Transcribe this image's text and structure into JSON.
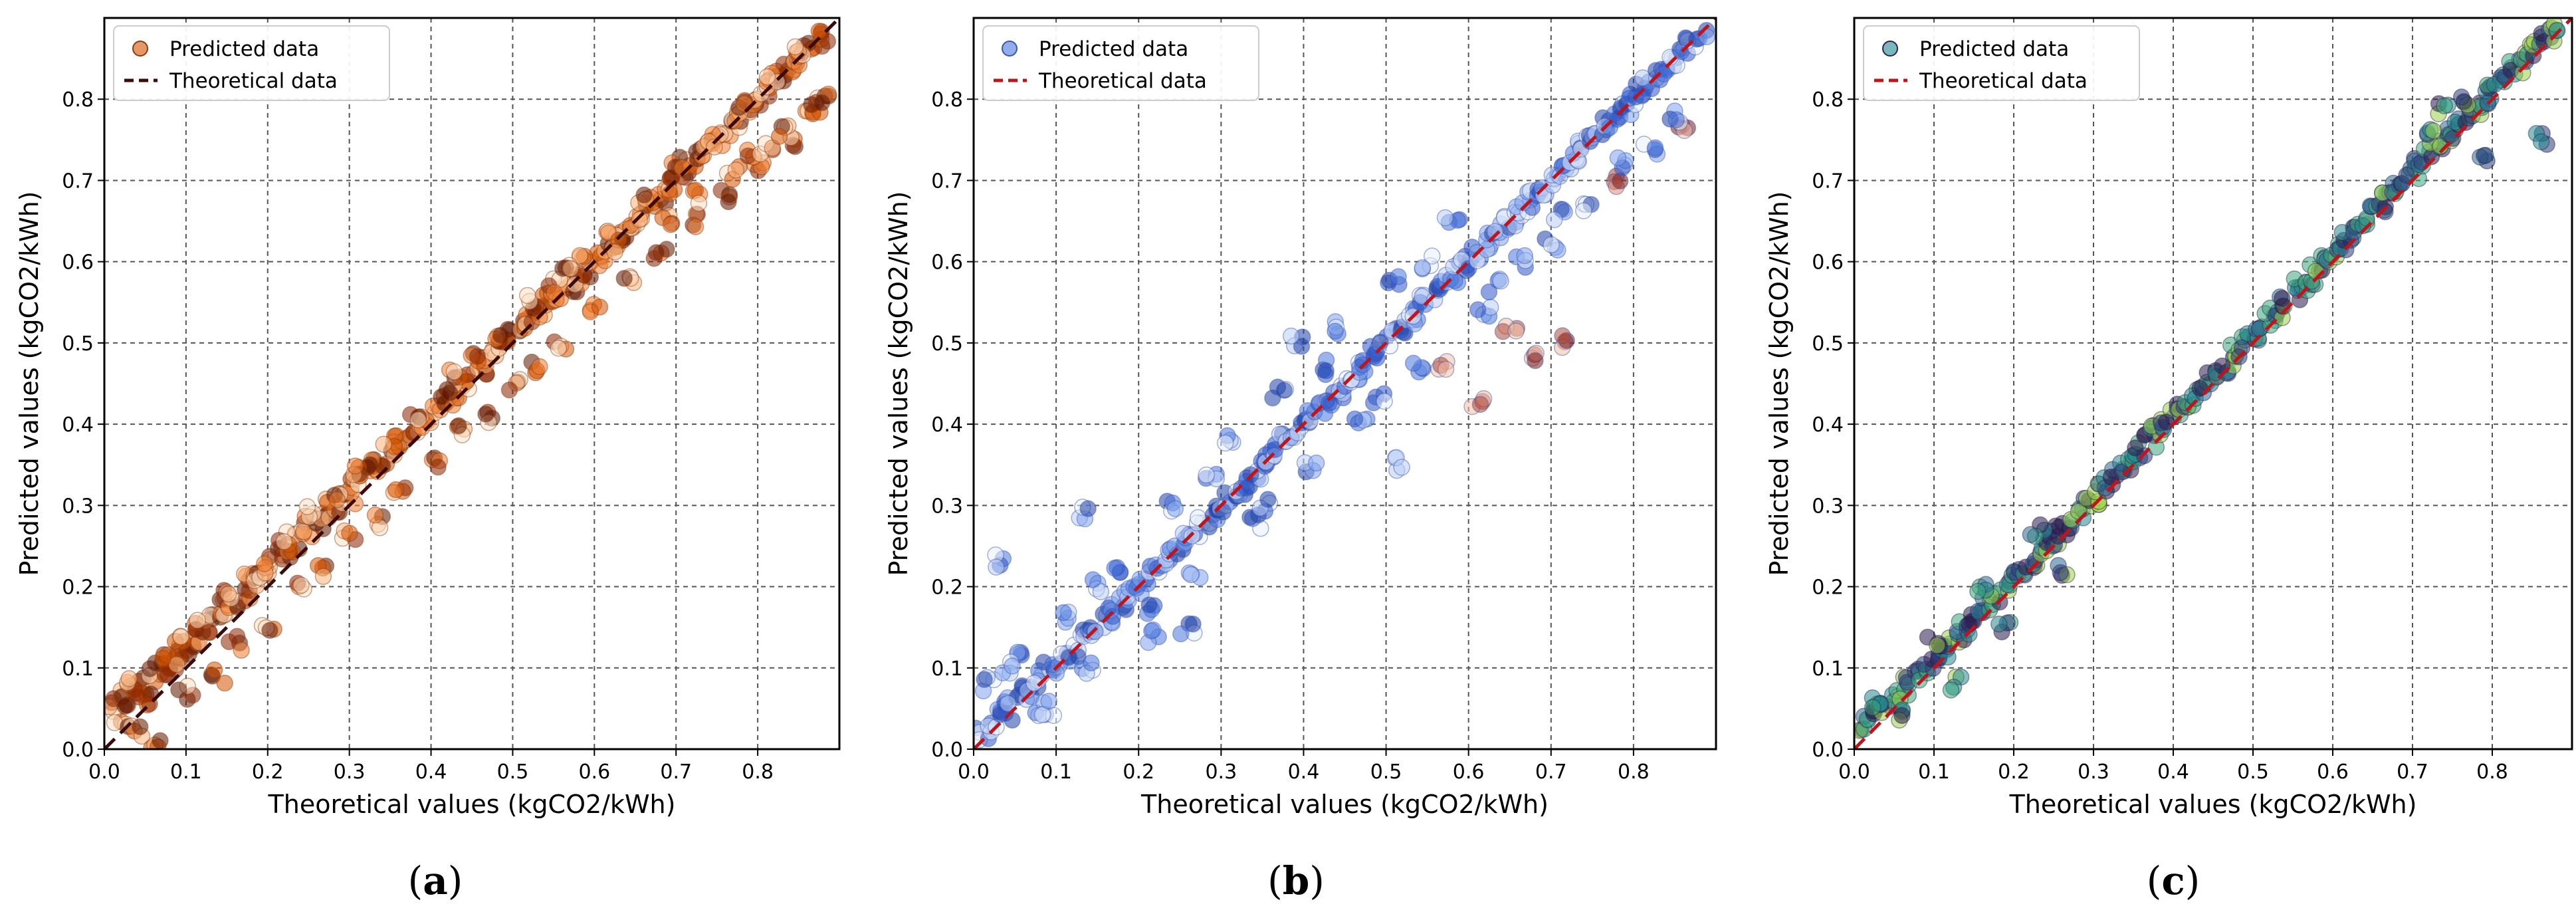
{
  "figure": {
    "charts": [
      {
        "id": "a",
        "caption_letter": "a",
        "palette": [
          "#fde0c5",
          "#f9b27a",
          "#ef7b2f",
          "#d35400",
          "#8b2500",
          "#5c1500"
        ],
        "point_edge": "#8a3b12"
      },
      {
        "id": "b",
        "caption_letter": "b",
        "palette": [
          "#e7eefc",
          "#b9cdf6",
          "#7fa3ec",
          "#4a76dd",
          "#2d55c8",
          "#1e3fa5"
        ],
        "outlier_palette": [
          "#f2c0a6",
          "#e48b6b",
          "#b24a3b",
          "#7b1e1e"
        ],
        "point_edge": "#3b56b0"
      },
      {
        "id": "c",
        "caption_letter": "c",
        "palette": [
          "#2a1a4a",
          "#2e3d7a",
          "#2b6a8e",
          "#23888e",
          "#3aa57a",
          "#9ad146"
        ],
        "point_edge": "#2b2450"
      }
    ]
  },
  "chart_data": [
    {
      "type": "scatter",
      "title": "",
      "xlabel": "Theoretical values (kgCO2/kWh)",
      "ylabel": "Predicted values (kgCO2/kWh)",
      "xlim": [
        0.0,
        0.9
      ],
      "ylim": [
        0.0,
        0.9
      ],
      "xticks": [
        0.0,
        0.1,
        0.2,
        0.3,
        0.4,
        0.5,
        0.6,
        0.7,
        0.8
      ],
      "yticks": [
        0.0,
        0.1,
        0.2,
        0.3,
        0.4,
        0.5,
        0.6,
        0.7,
        0.8
      ],
      "tick_labels": [
        "0.0",
        "0.1",
        "0.2",
        "0.3",
        "0.4",
        "0.5",
        "0.6",
        "0.7",
        "0.8"
      ],
      "grid": true,
      "legend": {
        "position": "top-left",
        "entries": [
          "Predicted data",
          "Theoretical data"
        ]
      },
      "series": [
        {
          "name": "Predicted data",
          "kind": "scatter",
          "x": [
            0.01,
            0.02,
            0.03,
            0.04,
            0.05,
            0.06,
            0.07,
            0.08,
            0.09,
            0.1,
            0.11,
            0.12,
            0.13,
            0.14,
            0.15,
            0.16,
            0.17,
            0.18,
            0.19,
            0.2,
            0.21,
            0.22,
            0.23,
            0.24,
            0.25,
            0.26,
            0.27,
            0.28,
            0.29,
            0.3,
            0.31,
            0.32,
            0.33,
            0.34,
            0.35,
            0.36,
            0.37,
            0.38,
            0.39,
            0.4,
            0.41,
            0.42,
            0.43,
            0.44,
            0.45,
            0.46,
            0.47,
            0.48,
            0.49,
            0.5,
            0.51,
            0.52,
            0.53,
            0.54,
            0.55,
            0.56,
            0.57,
            0.58,
            0.59,
            0.6,
            0.61,
            0.62,
            0.63,
            0.64,
            0.65,
            0.66,
            0.67,
            0.68,
            0.69,
            0.7,
            0.71,
            0.72,
            0.73,
            0.74,
            0.75,
            0.76,
            0.77,
            0.78,
            0.79,
            0.8,
            0.81,
            0.82,
            0.83,
            0.84,
            0.85,
            0.86,
            0.87,
            0.88,
            0.02,
            0.05,
            0.08,
            0.12,
            0.15,
            0.18,
            0.22,
            0.25,
            0.28,
            0.32,
            0.35,
            0.38,
            0.42,
            0.45,
            0.48,
            0.52,
            0.55,
            0.58,
            0.62,
            0.66,
            0.7,
            0.74,
            0.78,
            0.82,
            0.85,
            0.04,
            0.1,
            0.16,
            0.24,
            0.3,
            0.36,
            0.44,
            0.5,
            0.56,
            0.64,
            0.72,
            0.8,
            0.86,
            0.06,
            0.14,
            0.2,
            0.27,
            0.34,
            0.41,
            0.47,
            0.53,
            0.6,
            0.68,
            0.76,
            0.84,
            0.88,
            0.03,
            0.09,
            0.19,
            0.31,
            0.43,
            0.57,
            0.63,
            0.69,
            0.73,
            0.77,
            0.79,
            0.81,
            0.83,
            0.87
          ],
          "y": [
            0.05,
            0.07,
            0.06,
            0.08,
            0.07,
            0.09,
            0.1,
            0.1,
            0.12,
            0.12,
            0.13,
            0.14,
            0.16,
            0.16,
            0.18,
            0.18,
            0.19,
            0.21,
            0.21,
            0.22,
            0.23,
            0.24,
            0.25,
            0.27,
            0.27,
            0.28,
            0.29,
            0.3,
            0.31,
            0.31,
            0.33,
            0.34,
            0.35,
            0.35,
            0.37,
            0.37,
            0.38,
            0.39,
            0.4,
            0.41,
            0.42,
            0.43,
            0.44,
            0.45,
            0.46,
            0.47,
            0.48,
            0.49,
            0.5,
            0.51,
            0.52,
            0.53,
            0.54,
            0.55,
            0.56,
            0.56,
            0.57,
            0.58,
            0.59,
            0.6,
            0.61,
            0.62,
            0.63,
            0.64,
            0.65,
            0.66,
            0.67,
            0.68,
            0.69,
            0.7,
            0.71,
            0.72,
            0.73,
            0.74,
            0.75,
            0.76,
            0.77,
            0.78,
            0.79,
            0.8,
            0.81,
            0.82,
            0.83,
            0.84,
            0.85,
            0.86,
            0.87,
            0.88,
            0.03,
            0.06,
            0.11,
            0.15,
            0.19,
            0.21,
            0.26,
            0.29,
            0.31,
            0.35,
            0.38,
            0.41,
            0.44,
            0.48,
            0.51,
            0.55,
            0.57,
            0.6,
            0.64,
            0.68,
            0.72,
            0.75,
            0.79,
            0.83,
            0.86,
            0.02,
            0.07,
            0.13,
            0.2,
            0.26,
            0.32,
            0.39,
            0.45,
            0.5,
            0.58,
            0.65,
            0.72,
            0.78,
            0.01,
            0.09,
            0.15,
            0.22,
            0.28,
            0.35,
            0.41,
            0.47,
            0.54,
            0.61,
            0.68,
            0.75,
            0.8,
            0.08,
            0.14,
            0.22,
            0.34,
            0.46,
            0.59,
            0.62,
            0.65,
            0.68,
            0.71,
            0.73,
            0.74,
            0.76,
            0.79
          ]
        },
        {
          "name": "Theoretical data",
          "kind": "line",
          "x": [
            0.0,
            0.9
          ],
          "y": [
            0.0,
            0.9
          ],
          "color": "#3b0a0a",
          "style": "dashed"
        }
      ]
    },
    {
      "type": "scatter",
      "title": "",
      "xlabel": "Theoretical values (kgCO2/kWh)",
      "ylabel": "Predicted values (kgCO2/kWh)",
      "xlim": [
        0.0,
        0.9
      ],
      "ylim": [
        0.0,
        0.9
      ],
      "xticks": [
        0.0,
        0.1,
        0.2,
        0.3,
        0.4,
        0.5,
        0.6,
        0.7,
        0.8
      ],
      "yticks": [
        0.0,
        0.1,
        0.2,
        0.3,
        0.4,
        0.5,
        0.6,
        0.7,
        0.8
      ],
      "tick_labels": [
        "0.0",
        "0.1",
        "0.2",
        "0.3",
        "0.4",
        "0.5",
        "0.6",
        "0.7",
        "0.8"
      ],
      "grid": true,
      "legend": {
        "position": "top-left",
        "entries": [
          "Predicted data",
          "Theoretical data"
        ]
      },
      "series": [
        {
          "name": "Predicted data",
          "kind": "scatter",
          "x": [
            0.01,
            0.02,
            0.03,
            0.04,
            0.05,
            0.06,
            0.07,
            0.08,
            0.09,
            0.1,
            0.11,
            0.12,
            0.13,
            0.14,
            0.15,
            0.16,
            0.17,
            0.18,
            0.19,
            0.2,
            0.21,
            0.22,
            0.23,
            0.24,
            0.25,
            0.26,
            0.27,
            0.28,
            0.29,
            0.3,
            0.31,
            0.32,
            0.33,
            0.34,
            0.35,
            0.36,
            0.37,
            0.38,
            0.39,
            0.4,
            0.41,
            0.42,
            0.43,
            0.44,
            0.45,
            0.46,
            0.47,
            0.48,
            0.49,
            0.5,
            0.51,
            0.52,
            0.53,
            0.54,
            0.55,
            0.56,
            0.57,
            0.58,
            0.59,
            0.6,
            0.61,
            0.62,
            0.63,
            0.64,
            0.65,
            0.66,
            0.67,
            0.68,
            0.69,
            0.7,
            0.71,
            0.72,
            0.73,
            0.74,
            0.75,
            0.76,
            0.77,
            0.78,
            0.79,
            0.8,
            0.81,
            0.82,
            0.83,
            0.84,
            0.85,
            0.86,
            0.87,
            0.88,
            0.02,
            0.05,
            0.08,
            0.11,
            0.14,
            0.17,
            0.21,
            0.24,
            0.27,
            0.31,
            0.34,
            0.37,
            0.41,
            0.44,
            0.47,
            0.51,
            0.54,
            0.58,
            0.62,
            0.66,
            0.7,
            0.74,
            0.78,
            0.82,
            0.86,
            0.04,
            0.09,
            0.15,
            0.22,
            0.29,
            0.35,
            0.43,
            0.49,
            0.55,
            0.63,
            0.71,
            0.79,
            0.85,
            0.03,
            0.13,
            0.26,
            0.39,
            0.52,
            0.57,
            0.61,
            0.65,
            0.68,
            0.72
          ],
          "y": [
            0.02,
            0.03,
            0.05,
            0.04,
            0.06,
            0.07,
            0.07,
            0.09,
            0.1,
            0.1,
            0.11,
            0.12,
            0.14,
            0.14,
            0.15,
            0.16,
            0.17,
            0.18,
            0.19,
            0.2,
            0.21,
            0.22,
            0.23,
            0.24,
            0.25,
            0.26,
            0.27,
            0.28,
            0.29,
            0.3,
            0.31,
            0.32,
            0.33,
            0.34,
            0.35,
            0.36,
            0.37,
            0.38,
            0.39,
            0.4,
            0.41,
            0.42,
            0.43,
            0.44,
            0.45,
            0.46,
            0.47,
            0.48,
            0.49,
            0.5,
            0.51,
            0.52,
            0.53,
            0.54,
            0.55,
            0.56,
            0.57,
            0.58,
            0.59,
            0.6,
            0.61,
            0.62,
            0.63,
            0.64,
            0.65,
            0.66,
            0.67,
            0.68,
            0.69,
            0.7,
            0.71,
            0.72,
            0.73,
            0.74,
            0.75,
            0.76,
            0.77,
            0.78,
            0.79,
            0.8,
            0.81,
            0.82,
            0.83,
            0.84,
            0.85,
            0.86,
            0.87,
            0.88,
            0.08,
            0.12,
            0.05,
            0.16,
            0.1,
            0.22,
            0.17,
            0.3,
            0.22,
            0.38,
            0.28,
            0.44,
            0.35,
            0.52,
            0.4,
            0.58,
            0.47,
            0.65,
            0.54,
            0.6,
            0.62,
            0.67,
            0.7,
            0.74,
            0.76,
            0.1,
            0.05,
            0.2,
            0.14,
            0.33,
            0.3,
            0.47,
            0.43,
            0.6,
            0.57,
            0.66,
            0.72,
            0.78,
            0.23,
            0.29,
            0.15,
            0.5,
            0.35,
            0.47,
            0.43,
            0.52,
            0.48,
            0.5
          ]
        },
        {
          "name": "Theoretical data",
          "kind": "line",
          "x": [
            0.0,
            0.9
          ],
          "y": [
            0.0,
            0.9
          ],
          "color": "#c0141b",
          "style": "dashed"
        }
      ]
    },
    {
      "type": "scatter",
      "title": "",
      "xlabel": "Theoretical values (kgCO2/kWh)",
      "ylabel": "Predicted values (kgCO2/kWh)",
      "xlim": [
        0.0,
        0.9
      ],
      "ylim": [
        0.0,
        0.9
      ],
      "xticks": [
        0.0,
        0.1,
        0.2,
        0.3,
        0.4,
        0.5,
        0.6,
        0.7,
        0.8
      ],
      "yticks": [
        0.0,
        0.1,
        0.2,
        0.3,
        0.4,
        0.5,
        0.6,
        0.7,
        0.8
      ],
      "tick_labels": [
        "0.0",
        "0.1",
        "0.2",
        "0.3",
        "0.4",
        "0.5",
        "0.6",
        "0.7",
        "0.8"
      ],
      "grid": true,
      "legend": {
        "position": "top-left",
        "entries": [
          "Predicted data",
          "Theoretical data"
        ]
      },
      "series": [
        {
          "name": "Predicted data",
          "kind": "scatter",
          "x": [
            0.01,
            0.02,
            0.03,
            0.04,
            0.05,
            0.06,
            0.07,
            0.08,
            0.09,
            0.1,
            0.11,
            0.12,
            0.13,
            0.14,
            0.15,
            0.16,
            0.17,
            0.18,
            0.19,
            0.2,
            0.21,
            0.22,
            0.23,
            0.24,
            0.25,
            0.26,
            0.27,
            0.28,
            0.29,
            0.3,
            0.31,
            0.32,
            0.33,
            0.34,
            0.35,
            0.36,
            0.37,
            0.38,
            0.39,
            0.4,
            0.41,
            0.42,
            0.43,
            0.44,
            0.45,
            0.46,
            0.47,
            0.48,
            0.49,
            0.5,
            0.51,
            0.52,
            0.53,
            0.54,
            0.55,
            0.56,
            0.57,
            0.58,
            0.59,
            0.6,
            0.61,
            0.62,
            0.63,
            0.64,
            0.65,
            0.66,
            0.67,
            0.68,
            0.69,
            0.7,
            0.71,
            0.72,
            0.73,
            0.74,
            0.75,
            0.76,
            0.77,
            0.78,
            0.79,
            0.8,
            0.81,
            0.82,
            0.83,
            0.84,
            0.85,
            0.86,
            0.87,
            0.88,
            0.03,
            0.06,
            0.1,
            0.13,
            0.16,
            0.19,
            0.23,
            0.26,
            0.72,
            0.74,
            0.77,
            0.79,
            0.86
          ],
          "y": [
            0.03,
            0.04,
            0.05,
            0.05,
            0.06,
            0.07,
            0.08,
            0.09,
            0.1,
            0.11,
            0.12,
            0.13,
            0.14,
            0.15,
            0.16,
            0.17,
            0.18,
            0.19,
            0.2,
            0.21,
            0.22,
            0.23,
            0.24,
            0.25,
            0.26,
            0.27,
            0.28,
            0.29,
            0.3,
            0.31,
            0.32,
            0.33,
            0.34,
            0.35,
            0.36,
            0.37,
            0.38,
            0.39,
            0.4,
            0.41,
            0.42,
            0.43,
            0.44,
            0.45,
            0.46,
            0.47,
            0.48,
            0.49,
            0.5,
            0.51,
            0.52,
            0.53,
            0.54,
            0.55,
            0.56,
            0.57,
            0.58,
            0.59,
            0.6,
            0.61,
            0.62,
            0.63,
            0.64,
            0.65,
            0.66,
            0.67,
            0.68,
            0.69,
            0.7,
            0.71,
            0.72,
            0.73,
            0.74,
            0.75,
            0.76,
            0.77,
            0.78,
            0.79,
            0.8,
            0.81,
            0.82,
            0.83,
            0.84,
            0.85,
            0.86,
            0.87,
            0.88,
            0.89,
            0.06,
            0.04,
            0.13,
            0.08,
            0.2,
            0.15,
            0.27,
            0.22,
            0.76,
            0.79,
            0.8,
            0.73,
            0.75
          ]
        },
        {
          "name": "Theoretical data",
          "kind": "line",
          "x": [
            0.0,
            0.9
          ],
          "y": [
            0.0,
            0.9
          ],
          "color": "#c0141b",
          "style": "dashed"
        }
      ]
    }
  ]
}
